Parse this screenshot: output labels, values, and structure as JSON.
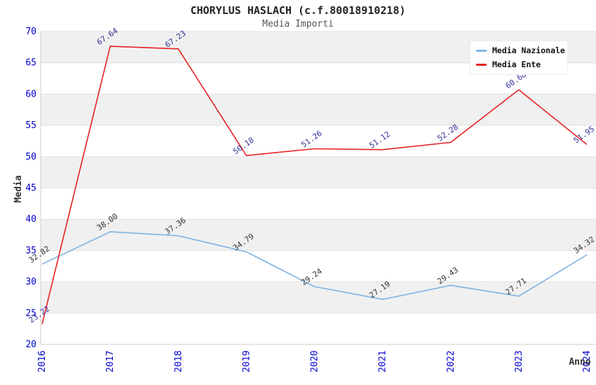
{
  "chart_data": {
    "type": "line",
    "title": "CHORYLUS HASLACH (c.f.80018910218)",
    "subtitle": "Media Importi",
    "xlabel": "Anno",
    "ylabel": "Media",
    "categories": [
      "2016",
      "2017",
      "2018",
      "2019",
      "2020",
      "2021",
      "2022",
      "2023",
      "2024"
    ],
    "series": [
      {
        "name": "Media Nazionale",
        "color": "#7fb3e1",
        "label_color": "#333333",
        "values": [
          32.82,
          38.0,
          37.36,
          34.79,
          29.24,
          27.19,
          29.43,
          27.71,
          34.32
        ]
      },
      {
        "name": "Media Ente",
        "color": "#e62222",
        "label_color": "#333399",
        "values": [
          23.22,
          67.64,
          67.23,
          50.18,
          51.26,
          51.12,
          52.28,
          60.68,
          51.95
        ]
      }
    ],
    "ylim": [
      20,
      70
    ],
    "ytick_step": 5,
    "yticks": [
      20,
      25,
      30,
      35,
      40,
      45,
      50,
      55,
      60,
      65,
      70
    ],
    "grid": true,
    "band_color": "#f0f0f0",
    "gridline_color": "#e0e0e0",
    "axis_line_color": "#cccccc",
    "tick_label_color": "#0000cd",
    "legend_position": "top-right"
  }
}
